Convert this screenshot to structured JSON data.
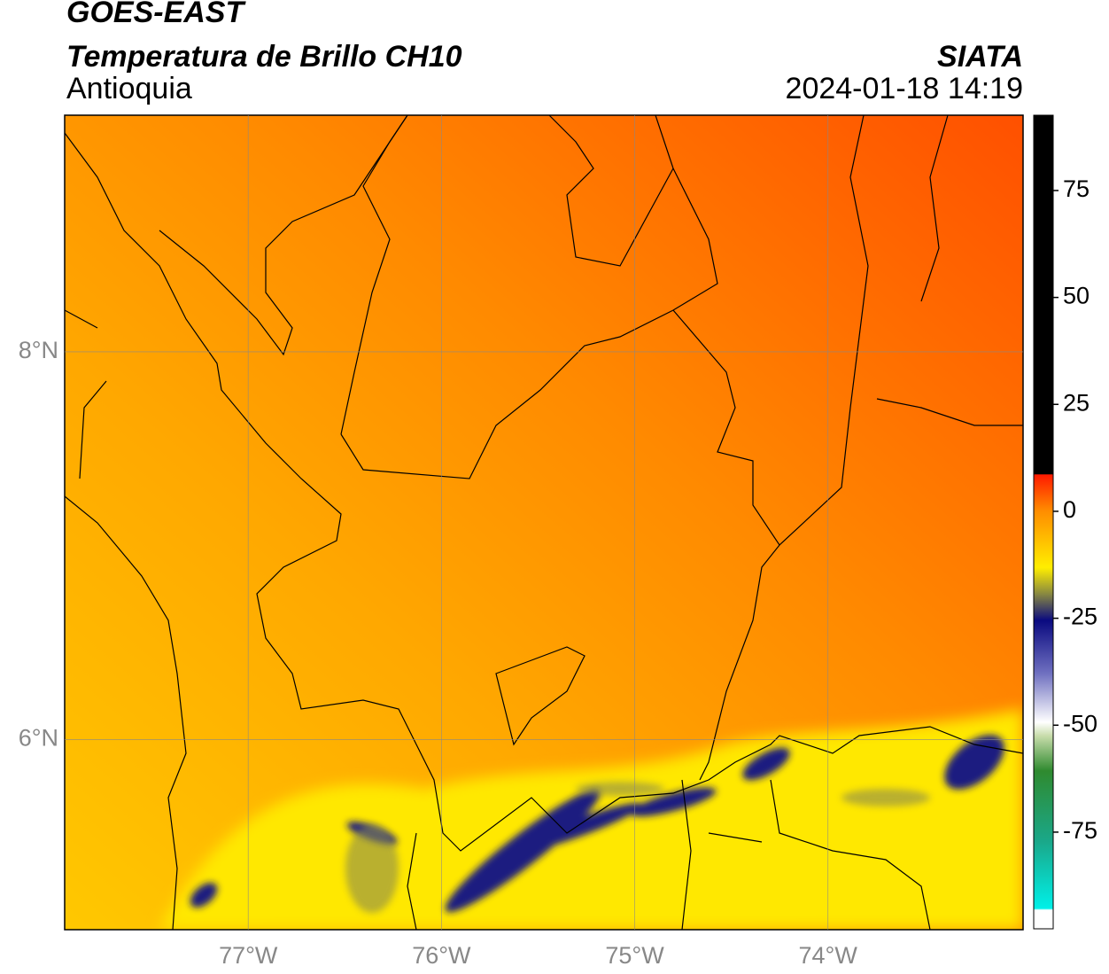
{
  "header": {
    "title": "GOES-EAST",
    "subtitle": "Temperatura de Brillo CH10",
    "region": "Antioquia",
    "source": "SIATA",
    "timestamp": "2024-01-18 14:19"
  },
  "map": {
    "lonlim": [
      -77.95,
      -72.99
    ],
    "latlim": [
      5.02,
      9.22
    ],
    "lon_ticks": [
      {
        "value": -77,
        "label": "77°W"
      },
      {
        "value": -76,
        "label": "76°W"
      },
      {
        "value": -75,
        "label": "75°W"
      },
      {
        "value": -74,
        "label": "74°W"
      }
    ],
    "lat_ticks": [
      {
        "value": 8,
        "label": "8°N"
      },
      {
        "value": 6,
        "label": "6°N"
      }
    ]
  },
  "colorbar": {
    "lim": [
      -97.6,
      92.6
    ],
    "ticks": [
      75,
      50,
      25,
      0,
      -25,
      -50,
      -75
    ]
  }
}
